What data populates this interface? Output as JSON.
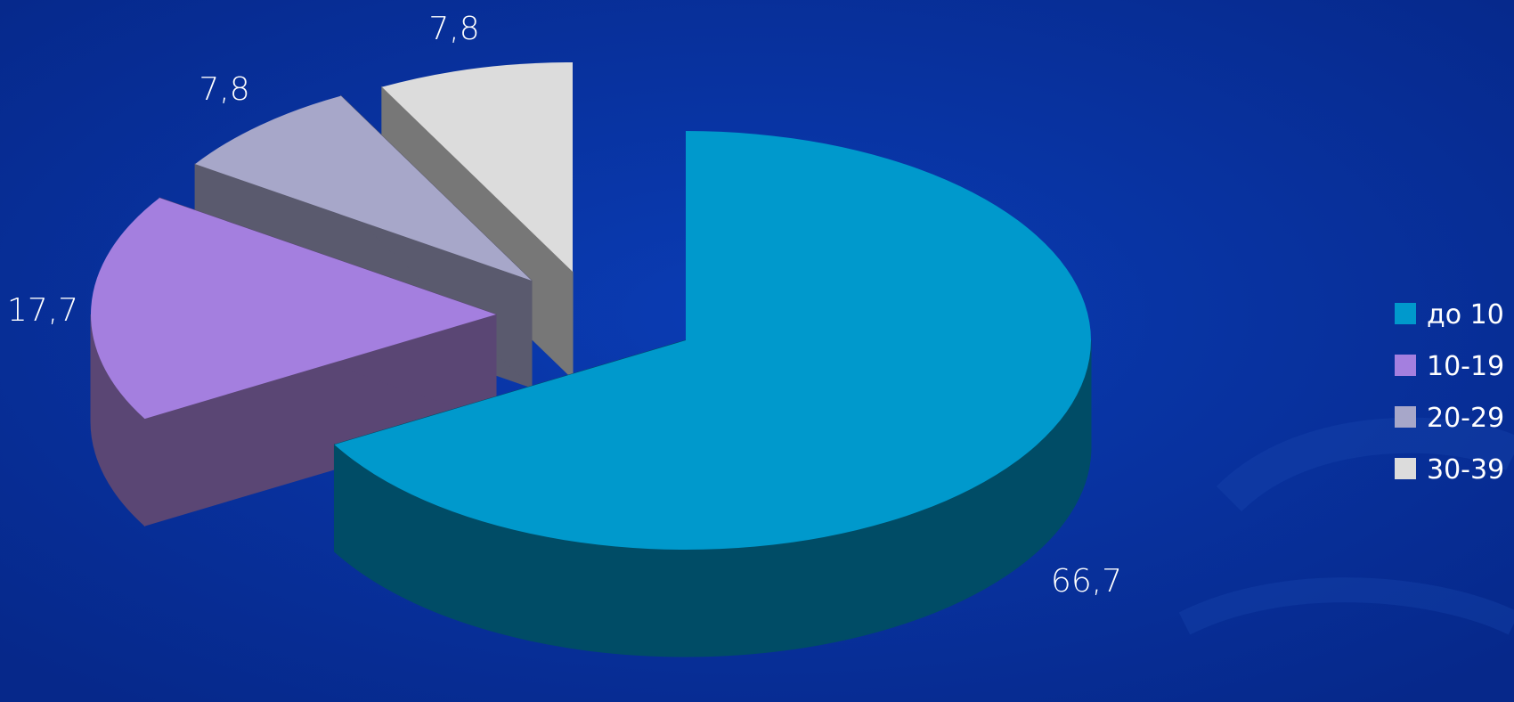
{
  "chart_data": {
    "type": "pie",
    "style": "3d-exploded",
    "title": "",
    "categories": [
      "до 10",
      "10-19",
      "20-29",
      "30-39"
    ],
    "values": [
      66.7,
      17.7,
      7.8,
      7.8
    ],
    "data_labels": [
      "66,7",
      "17,7",
      "7,8",
      "7,8"
    ],
    "colors": [
      "#0099cc",
      "#a47fdf",
      "#a7a7c9",
      "#dcdcdc"
    ],
    "side_colors": [
      "#004c66",
      "#5a4674",
      "#5a5a6e",
      "#777777"
    ],
    "legend": {
      "placement": "right",
      "entries": [
        "до 10",
        "10-19",
        "20-29",
        "30-39"
      ]
    }
  }
}
